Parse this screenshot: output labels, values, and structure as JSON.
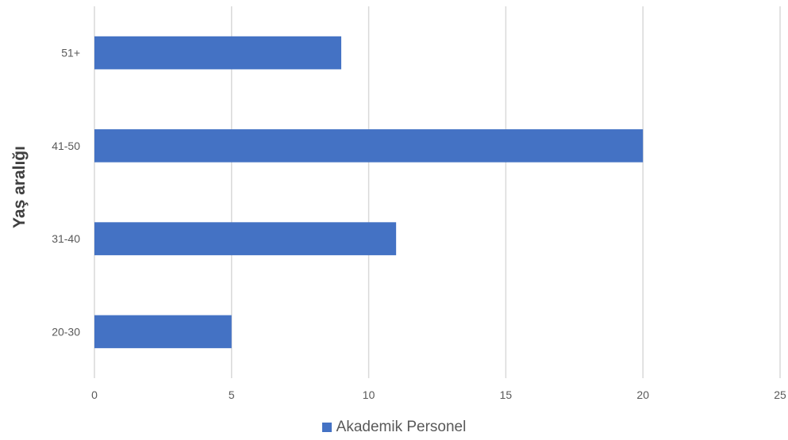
{
  "chart_data": {
    "type": "bar",
    "orientation": "horizontal",
    "categories": [
      "51+",
      "41-50",
      "31-40",
      "20-30"
    ],
    "series": [
      {
        "name": "Akademik Personel",
        "values": [
          9,
          20,
          11,
          5
        ],
        "color": "#4472C4"
      }
    ],
    "xlabel": "",
    "ylabel": "Yaş aralığı",
    "xlim": [
      0,
      25
    ],
    "xticks": [
      "0",
      "5",
      "10",
      "15",
      "20",
      "25"
    ],
    "grid": true,
    "legend_position": "bottom"
  }
}
